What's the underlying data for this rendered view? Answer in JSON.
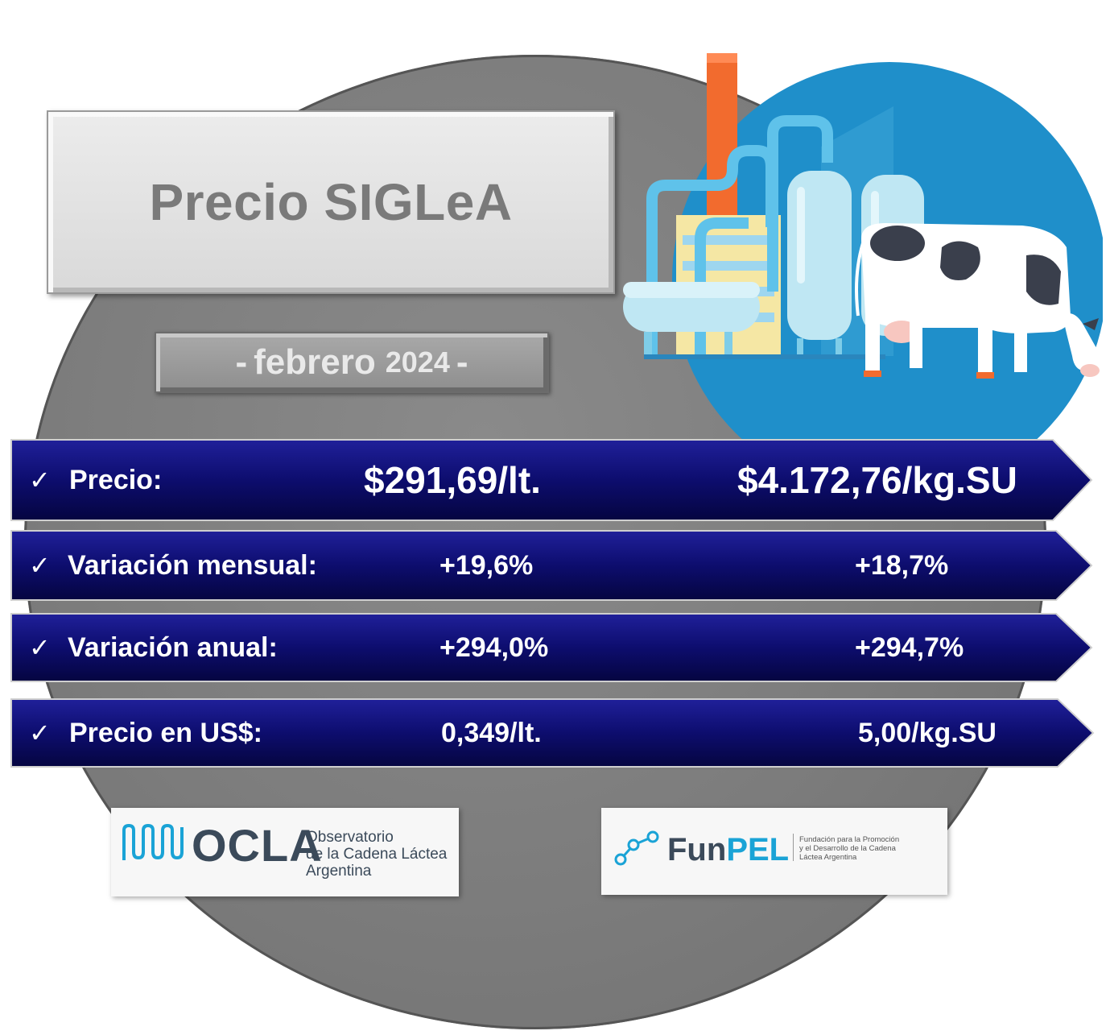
{
  "header": {
    "title": "Precio SIGLeA",
    "date": {
      "dash_left": "-",
      "month": "febrero",
      "year": "2024",
      "dash_right": "-"
    }
  },
  "rows": [
    {
      "check": "✓",
      "label": "Precio:",
      "value_lt": "$291,69/lt.",
      "value_kg": "$4.172,76/kg.SU"
    },
    {
      "check": "✓",
      "label": "Variación mensual:",
      "value_lt": "+19,6%",
      "value_kg": "+18,7%"
    },
    {
      "check": "✓",
      "label": "Variación anual:",
      "value_lt": "+294,0%",
      "value_kg": "+294,7%"
    },
    {
      "check": "✓",
      "label": "Precio en US$:",
      "value_lt": "0,349/lt.",
      "value_kg": "5,00/kg.SU"
    }
  ],
  "logos": {
    "ocla": {
      "name": "OCLA",
      "line1": "Observatorio",
      "line2": "de la Cadena Láctea",
      "line3": "Argentina"
    },
    "funpel": {
      "name_part1": "Fun",
      "name_part2": "PEL",
      "line1": "Fundación para la Promoción",
      "line2": "y el Desarrollo de la Cadena",
      "line3": "Láctea Argentina"
    }
  },
  "colors": {
    "band": "#0d0d6e",
    "background_disc": "#7f7f7f",
    "illustration_circle": "#1f8fca",
    "accent_cyan": "#1aa3d6"
  },
  "icons": [
    "check-icon",
    "dairy-factory-illustration",
    "cow-illustration",
    "ocla-wave-logo",
    "funpel-network-logo"
  ]
}
